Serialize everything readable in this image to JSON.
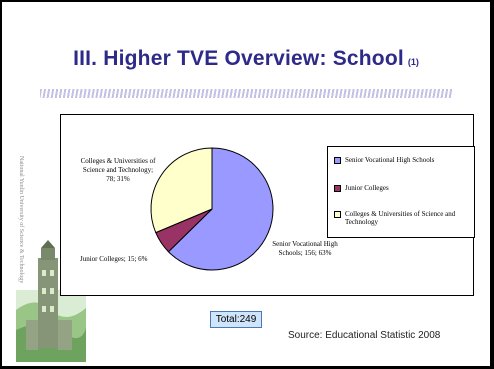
{
  "slide": {
    "title": "III. Higher TVE Overview: School",
    "title_note": "(1)",
    "side_watermark": "National Yunlin University of Science & Technology",
    "total": "Total:249",
    "source": "Source: Educational Statistic 2008"
  },
  "colors": {
    "title": "#2e2a8a",
    "senior": "#9999ff",
    "junior": "#993366",
    "colleges": "#ffffcc",
    "total_bg": "#cfe5fb"
  },
  "chart_data": {
    "type": "pie",
    "title": "",
    "slices": [
      {
        "name": "Senior Vocational High Schools",
        "value": 156,
        "percent": 63,
        "label": "Senior Vocational High Schools; 156; 63%"
      },
      {
        "name": "Junior Colleges",
        "value": 15,
        "percent": 6,
        "label": "Junior Colleges; 15; 6%"
      },
      {
        "name": "Colleges & Universities of Science and Technology",
        "value": 78,
        "percent": 31,
        "label": "Colleges & Universities of Science and Technology; 78; 31%"
      }
    ],
    "legend": {
      "placement": "right",
      "entries": [
        "Senior Vocational High Schools",
        "Junior Colleges",
        "Colleges & Universities of Science and Technology"
      ]
    }
  }
}
